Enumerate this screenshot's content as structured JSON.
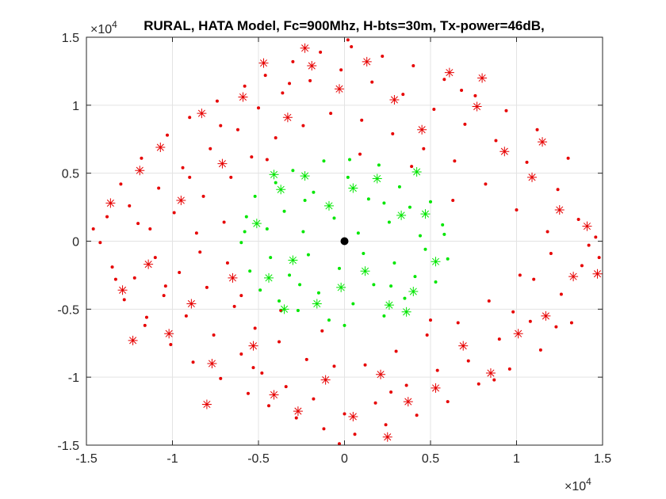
{
  "chart_data": {
    "type": "scatter",
    "title": "RURAL, HATA Model, Fc=900Mhz, H-bts=30m, Tx-power=46dB,",
    "xlabel": "",
    "ylabel": "",
    "xlim": [
      -15000,
      15000
    ],
    "ylim": [
      -15000,
      15000
    ],
    "grid": true,
    "x_ticks": [
      -15000,
      -10000,
      -5000,
      0,
      5000,
      10000,
      15000
    ],
    "y_ticks": [
      -15000,
      -10000,
      -5000,
      0,
      5000,
      10000,
      15000
    ],
    "x_tick_labels": [
      "-1.5",
      "-1",
      "-0.5",
      "0",
      "0.5",
      "1",
      "1.5"
    ],
    "y_tick_labels": [
      "-1.5",
      "-1",
      "-0.5",
      "0",
      "0.5",
      "1",
      "1.5"
    ],
    "x_exponent_base": "×10",
    "x_exponent_power": "4",
    "y_exponent_base": "×10",
    "y_exponent_power": "4",
    "series": [
      {
        "marker": "dot",
        "color": "#e60000",
        "values": [
          [
            -14200,
            -100
          ],
          [
            -13800,
            1800
          ],
          [
            -13500,
            -1900
          ],
          [
            -13000,
            4200
          ],
          [
            -12800,
            -4300
          ],
          [
            -12500,
            2600
          ],
          [
            -12200,
            -2700
          ],
          [
            -11800,
            6100
          ],
          [
            -11600,
            -6200
          ],
          [
            -11300,
            900
          ],
          [
            -11000,
            -1200
          ],
          [
            -10800,
            3900
          ],
          [
            -10500,
            -4000
          ],
          [
            -10300,
            7800
          ],
          [
            -10100,
            -7600
          ],
          [
            -9900,
            2100
          ],
          [
            -9600,
            -2300
          ],
          [
            -9400,
            5400
          ],
          [
            -9200,
            -5500
          ],
          [
            -9000,
            9100
          ],
          [
            -8800,
            -8900
          ],
          [
            -8600,
            600
          ],
          [
            -8400,
            -800
          ],
          [
            -8200,
            3300
          ],
          [
            -8000,
            -3400
          ],
          [
            -7800,
            6800
          ],
          [
            -7600,
            -6900
          ],
          [
            -7400,
            10300
          ],
          [
            -7200,
            -10100
          ],
          [
            -7000,
            1400
          ],
          [
            -6800,
            -1600
          ],
          [
            -6600,
            4700
          ],
          [
            -6400,
            -4800
          ],
          [
            -6200,
            8200
          ],
          [
            -6000,
            -8300
          ],
          [
            -5800,
            11400
          ],
          [
            -5600,
            -11200
          ],
          [
            -5400,
            6200
          ],
          [
            -5200,
            -6400
          ],
          [
            -5000,
            9800
          ],
          [
            -4800,
            -9700
          ],
          [
            -4600,
            12200
          ],
          [
            -4400,
            -12100
          ],
          [
            -4000,
            7600
          ],
          [
            -3800,
            -7400
          ],
          [
            -3600,
            10900
          ],
          [
            -3400,
            -10700
          ],
          [
            -3000,
            13200
          ],
          [
            -2800,
            -13000
          ],
          [
            -2400,
            8500
          ],
          [
            -2200,
            -8700
          ],
          [
            -2000,
            11800
          ],
          [
            -1800,
            -11600
          ],
          [
            -1400,
            13900
          ],
          [
            -1200,
            -13800
          ],
          [
            -800,
            9400
          ],
          [
            -600,
            -9200
          ],
          [
            -200,
            12600
          ],
          [
            0,
            -12700
          ],
          [
            400,
            14300
          ],
          [
            600,
            -14200
          ],
          [
            1000,
            8900
          ],
          [
            1200,
            -9100
          ],
          [
            1600,
            11700
          ],
          [
            1800,
            -11900
          ],
          [
            2200,
            13600
          ],
          [
            2400,
            -13500
          ],
          [
            2800,
            7900
          ],
          [
            3000,
            -8100
          ],
          [
            3400,
            10800
          ],
          [
            3600,
            -10600
          ],
          [
            4000,
            12900
          ],
          [
            4200,
            -12800
          ],
          [
            4600,
            6800
          ],
          [
            4800,
            -6900
          ],
          [
            5200,
            9700
          ],
          [
            5400,
            -9500
          ],
          [
            5800,
            11900
          ],
          [
            6000,
            -11800
          ],
          [
            6400,
            5900
          ],
          [
            6600,
            -6000
          ],
          [
            7000,
            8600
          ],
          [
            7200,
            -8800
          ],
          [
            7600,
            10700
          ],
          [
            7800,
            -10500
          ],
          [
            8200,
            4200
          ],
          [
            8400,
            -4400
          ],
          [
            8800,
            7400
          ],
          [
            9000,
            -7200
          ],
          [
            9400,
            9600
          ],
          [
            9600,
            -9400
          ],
          [
            10000,
            2300
          ],
          [
            10200,
            -2500
          ],
          [
            10600,
            5800
          ],
          [
            10800,
            -5900
          ],
          [
            11200,
            8200
          ],
          [
            11400,
            -8000
          ],
          [
            11800,
            700
          ],
          [
            12000,
            -900
          ],
          [
            12400,
            3800
          ],
          [
            12600,
            -3900
          ],
          [
            13000,
            6100
          ],
          [
            13200,
            -6000
          ],
          [
            13600,
            1600
          ],
          [
            13800,
            -1800
          ],
          [
            14200,
            -300
          ],
          [
            14600,
            300
          ],
          [
            12300,
            -6300
          ],
          [
            11000,
            -2800
          ],
          [
            9800,
            -5200
          ],
          [
            -9000,
            4700
          ],
          [
            -10400,
            -3300
          ],
          [
            -12000,
            1300
          ],
          [
            -7200,
            8500
          ],
          [
            -5300,
            -9300
          ],
          [
            -3200,
            11600
          ],
          [
            2700,
            -11100
          ],
          [
            6800,
            11100
          ],
          [
            8700,
            -10200
          ],
          [
            -11500,
            -5600
          ],
          [
            -13300,
            -2800
          ],
          [
            -4500,
            6000
          ],
          [
            -6000,
            -4000
          ],
          [
            5000,
            -5800
          ],
          [
            6300,
            3000
          ],
          [
            -1300,
            -6600
          ],
          [
            900,
            6400
          ],
          [
            3900,
            5500
          ],
          [
            -3700,
            -5100
          ],
          [
            -14600,
            900
          ],
          [
            14800,
            -1200
          ],
          [
            -300,
            -14900
          ],
          [
            200,
            14800
          ]
        ]
      },
      {
        "marker": "star",
        "color": "#e60000",
        "values": [
          [
            -13600,
            2800
          ],
          [
            -12900,
            -3600
          ],
          [
            -11900,
            5200
          ],
          [
            -11400,
            -1700
          ],
          [
            -10700,
            6900
          ],
          [
            -10200,
            -6800
          ],
          [
            -9500,
            3000
          ],
          [
            -8900,
            -4600
          ],
          [
            -8300,
            9400
          ],
          [
            -7700,
            -9000
          ],
          [
            -7100,
            5700
          ],
          [
            -6500,
            -2700
          ],
          [
            -5900,
            10600
          ],
          [
            -5300,
            -7700
          ],
          [
            -4700,
            13100
          ],
          [
            -4100,
            -11300
          ],
          [
            -3300,
            9100
          ],
          [
            -2700,
            -12500
          ],
          [
            -1900,
            12900
          ],
          [
            -1100,
            -10200
          ],
          [
            -300,
            11200
          ],
          [
            500,
            -12900
          ],
          [
            1300,
            13200
          ],
          [
            2100,
            -9800
          ],
          [
            2900,
            10400
          ],
          [
            3700,
            -11800
          ],
          [
            4500,
            8200
          ],
          [
            5300,
            -10800
          ],
          [
            6100,
            12400
          ],
          [
            6900,
            -7700
          ],
          [
            7700,
            9900
          ],
          [
            8500,
            -9700
          ],
          [
            9300,
            6600
          ],
          [
            10100,
            -6800
          ],
          [
            10900,
            4700
          ],
          [
            11700,
            -5500
          ],
          [
            12500,
            2300
          ],
          [
            13300,
            -2600
          ],
          [
            14100,
            1100
          ],
          [
            14700,
            -2400
          ],
          [
            11500,
            7300
          ],
          [
            -12300,
            -7300
          ],
          [
            -8000,
            -12000
          ],
          [
            8000,
            12000
          ],
          [
            -2300,
            14200
          ],
          [
            2500,
            -14400
          ]
        ]
      },
      {
        "marker": "dot",
        "color": "#00e600",
        "values": [
          [
            -6000,
            -100
          ],
          [
            -5700,
            1800
          ],
          [
            -5500,
            -2200
          ],
          [
            -5200,
            3300
          ],
          [
            -4900,
            -3600
          ],
          [
            -4500,
            900
          ],
          [
            -4300,
            -1200
          ],
          [
            -4000,
            4300
          ],
          [
            -3800,
            -4400
          ],
          [
            -3500,
            2200
          ],
          [
            -3200,
            -2500
          ],
          [
            -3000,
            5200
          ],
          [
            -2700,
            -5100
          ],
          [
            -2400,
            700
          ],
          [
            -2100,
            -1000
          ],
          [
            -1800,
            3600
          ],
          [
            -1500,
            -3800
          ],
          [
            -1200,
            5900
          ],
          [
            -900,
            -5800
          ],
          [
            -600,
            1700
          ],
          [
            -300,
            -2000
          ],
          [
            200,
            4700
          ],
          [
            500,
            -4600
          ],
          [
            800,
            600
          ],
          [
            1100,
            -900
          ],
          [
            1400,
            3100
          ],
          [
            1700,
            -3200
          ],
          [
            2000,
            5600
          ],
          [
            2300,
            -5500
          ],
          [
            2600,
            1400
          ],
          [
            2900,
            -1600
          ],
          [
            3200,
            4000
          ],
          [
            3500,
            -4200
          ],
          [
            3800,
            2500
          ],
          [
            4100,
            -2600
          ],
          [
            4400,
            400
          ],
          [
            4700,
            -600
          ],
          [
            5000,
            2900
          ],
          [
            5300,
            -3000
          ],
          [
            5700,
            1200
          ],
          [
            6000,
            -1300
          ],
          [
            -5800,
            700
          ],
          [
            5800,
            500
          ],
          [
            -2300,
            3000
          ],
          [
            2300,
            2800
          ],
          [
            -2600,
            -3200
          ],
          [
            2700,
            -3300
          ],
          [
            0,
            -6200
          ],
          [
            300,
            6000
          ]
        ]
      },
      {
        "marker": "star",
        "color": "#00e600",
        "values": [
          [
            -5100,
            1300
          ],
          [
            -4400,
            -2700
          ],
          [
            -3700,
            3800
          ],
          [
            -3000,
            -1400
          ],
          [
            -2300,
            4800
          ],
          [
            -1600,
            -4600
          ],
          [
            -900,
            2600
          ],
          [
            -200,
            -3400
          ],
          [
            500,
            3900
          ],
          [
            1200,
            -2200
          ],
          [
            1900,
            4600
          ],
          [
            2600,
            -4700
          ],
          [
            3300,
            1900
          ],
          [
            4000,
            -3700
          ],
          [
            4700,
            2000
          ],
          [
            5300,
            -1500
          ],
          [
            -4100,
            4900
          ],
          [
            4200,
            5100
          ],
          [
            -3500,
            -5000
          ],
          [
            3600,
            -5200
          ]
        ]
      },
      {
        "marker": "bigdot",
        "color": "#000000",
        "values": [
          [
            0,
            0
          ]
        ]
      }
    ]
  }
}
